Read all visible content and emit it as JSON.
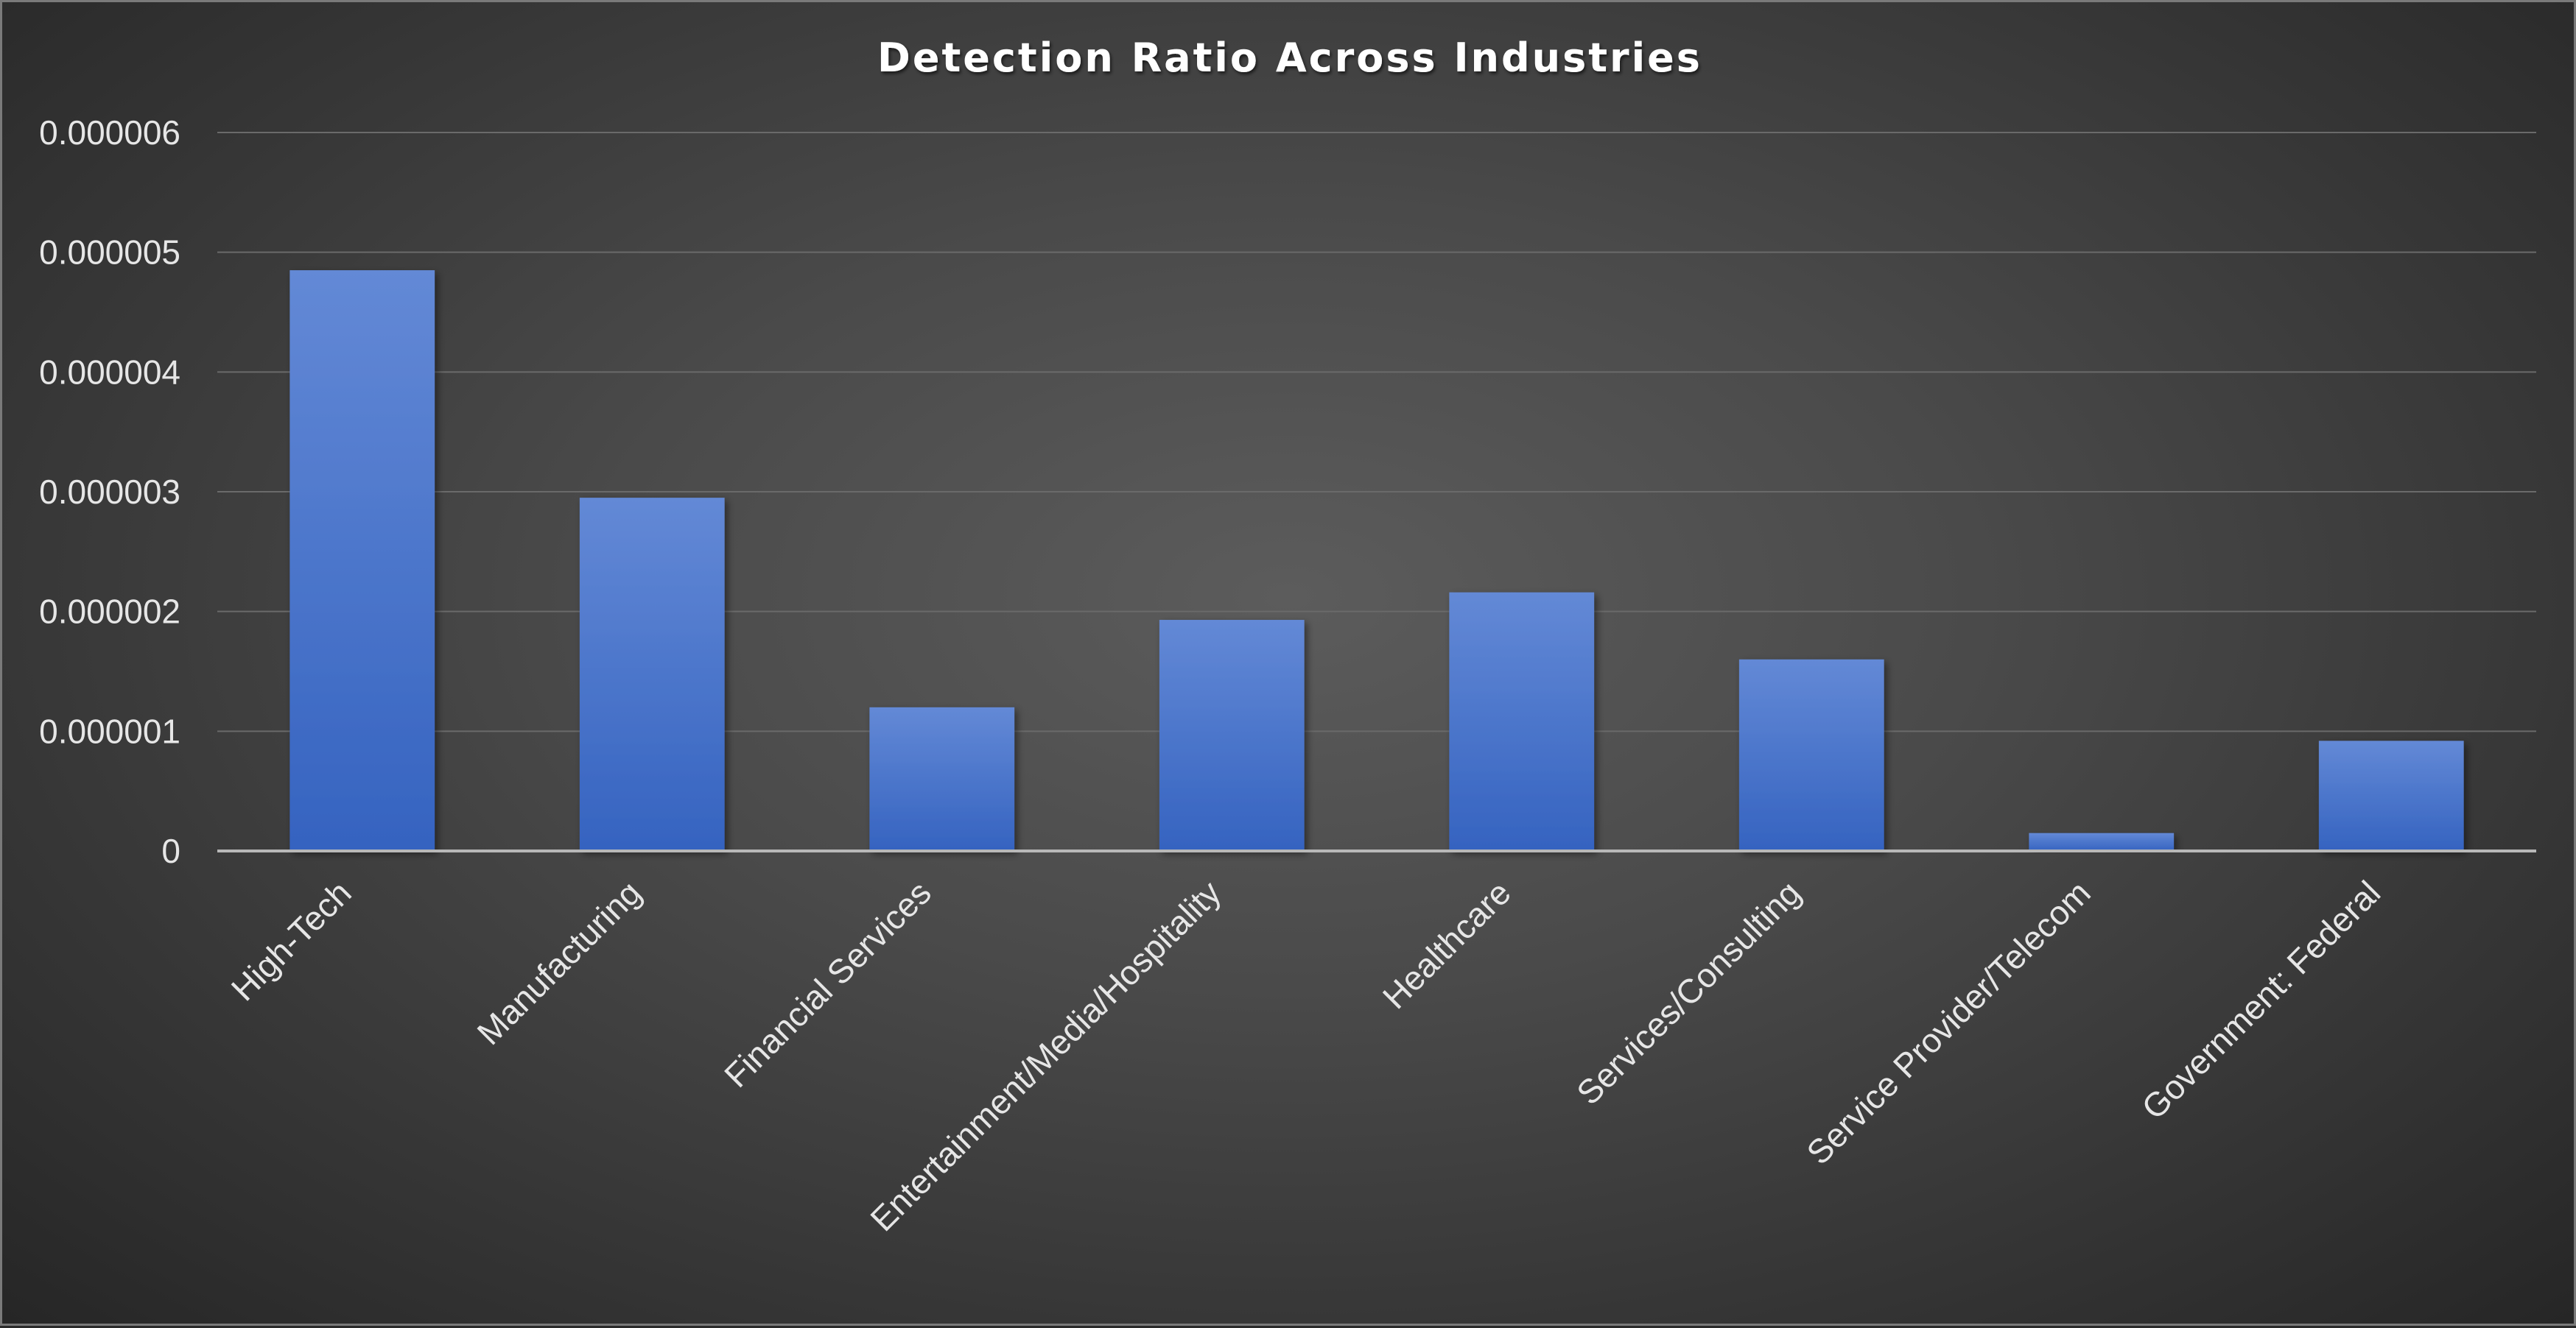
{
  "chart_data": {
    "type": "bar",
    "title": "Detection Ratio Across Industries",
    "xlabel": "",
    "ylabel": "",
    "categories": [
      "High-Tech",
      "Manufacturing",
      "Financial Services",
      "Entertainment/Media/Hospitality",
      "Healthcare",
      "Services/Consulting",
      "Service Provider/Telecom",
      "Government: Federal"
    ],
    "values": [
      4.85e-06,
      2.95e-06,
      1.2e-06,
      1.93e-06,
      2.16e-06,
      1.6e-06,
      1.5e-07,
      9.2e-07
    ],
    "ylim": [
      0,
      6e-06
    ],
    "yticks": [
      "0",
      "0.000001",
      "0.000002",
      "0.000003",
      "0.000004",
      "0.000005",
      "0.000006"
    ],
    "grid": true,
    "legend": "none",
    "bar_color_top": "#6389d6",
    "bar_color_bottom": "#3563c0"
  }
}
